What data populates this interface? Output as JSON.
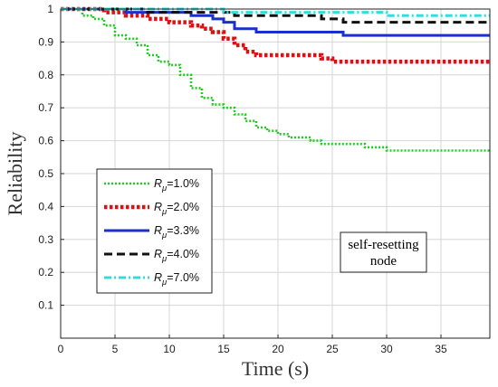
{
  "chart_data": {
    "type": "line",
    "xlabel": "Time (s)",
    "ylabel": "Reliability",
    "xlim": [
      0,
      39.5
    ],
    "ylim": [
      0,
      1
    ],
    "xticks": [
      0,
      5,
      10,
      15,
      20,
      25,
      30,
      35
    ],
    "yticks": [
      0.1,
      0.2,
      0.3,
      0.4,
      0.5,
      0.6,
      0.7,
      0.8,
      0.9,
      1
    ],
    "grid": true,
    "legend_position": "lower-left",
    "annotation": "self-resetting node",
    "series": [
      {
        "name_prefix": "R",
        "name_sub": "μ",
        "name_suffix": "=1.0%",
        "color": "#22cc22",
        "dash": "dotted",
        "x": [
          0,
          2,
          3,
          4,
          5,
          6,
          7,
          8,
          9,
          10,
          11,
          12,
          13,
          14,
          15,
          16,
          17,
          18,
          19,
          20,
          21,
          22,
          23,
          24,
          26,
          28,
          30,
          32,
          35,
          39.5
        ],
        "y": [
          1.0,
          0.98,
          0.97,
          0.95,
          0.92,
          0.91,
          0.89,
          0.86,
          0.84,
          0.83,
          0.8,
          0.76,
          0.73,
          0.71,
          0.7,
          0.68,
          0.66,
          0.64,
          0.63,
          0.62,
          0.61,
          0.61,
          0.6,
          0.59,
          0.59,
          0.58,
          0.57,
          0.57,
          0.57,
          0.57
        ]
      },
      {
        "name_prefix": "R",
        "name_sub": "μ",
        "name_suffix": "=2.0%",
        "color": "#dd1111",
        "dash": "dashed-dotted",
        "x": [
          0,
          2,
          4,
          6,
          8,
          10,
          12,
          13,
          14,
          15,
          16,
          17,
          18,
          20,
          22,
          24,
          25,
          26,
          28,
          30,
          35,
          39.5
        ],
        "y": [
          1.0,
          1.0,
          0.99,
          0.98,
          0.97,
          0.96,
          0.95,
          0.94,
          0.93,
          0.91,
          0.89,
          0.87,
          0.86,
          0.86,
          0.86,
          0.85,
          0.84,
          0.84,
          0.84,
          0.84,
          0.84,
          0.84
        ]
      },
      {
        "name_prefix": "R",
        "name_sub": "μ",
        "name_suffix": "=3.3%",
        "color": "#1a2fcc",
        "dash": "solid",
        "x": [
          0,
          3,
          6,
          9,
          12,
          14,
          15,
          16,
          18,
          21,
          24,
          25,
          26,
          30,
          35,
          39.5
        ],
        "y": [
          1.0,
          1.0,
          0.99,
          0.99,
          0.98,
          0.97,
          0.96,
          0.94,
          0.93,
          0.93,
          0.93,
          0.93,
          0.92,
          0.92,
          0.92,
          0.92
        ]
      },
      {
        "name_prefix": "R",
        "name_sub": "μ",
        "name_suffix": "=4.0%",
        "color": "#111111",
        "dash": "dashed",
        "x": [
          0,
          4,
          8,
          12,
          16,
          20,
          24,
          25,
          26,
          28,
          30,
          35,
          39.5
        ],
        "y": [
          1.0,
          1.0,
          0.99,
          0.99,
          0.98,
          0.98,
          0.97,
          0.97,
          0.96,
          0.96,
          0.96,
          0.96,
          0.96
        ]
      },
      {
        "name_prefix": "R",
        "name_sub": "μ",
        "name_suffix": "=7.0%",
        "color": "#33dddd",
        "dash": "dash-dot",
        "x": [
          0,
          5,
          10,
          15,
          20,
          25,
          30,
          35,
          39.5
        ],
        "y": [
          1.0,
          1.0,
          1.0,
          0.99,
          0.99,
          0.99,
          0.98,
          0.98,
          0.98
        ]
      }
    ]
  }
}
